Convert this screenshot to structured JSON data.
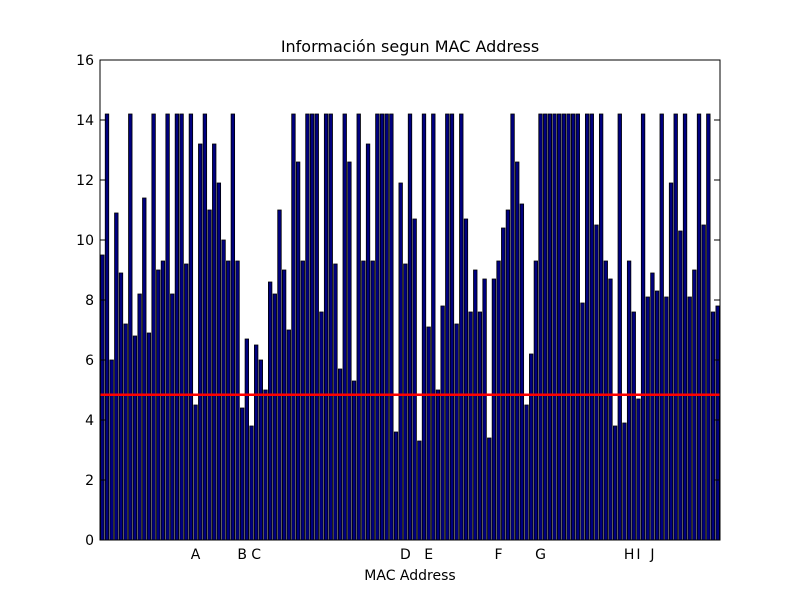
{
  "chart_data": {
    "type": "bar",
    "title": "Información segun MAC Address",
    "xlabel": "MAC Address",
    "ylabel": "",
    "ylim": [
      0,
      16
    ],
    "yticks": [
      0,
      2,
      4,
      6,
      8,
      10,
      12,
      14,
      16
    ],
    "grid": false,
    "legend": "none",
    "bar_color": "#00007f",
    "bar_edge_color": "#000000",
    "reference_line": {
      "value": 4.84,
      "color": "#ff0000"
    },
    "values": [
      9.5,
      14.2,
      6.0,
      10.9,
      8.9,
      7.2,
      14.2,
      6.8,
      8.2,
      11.4,
      6.9,
      14.2,
      9.0,
      9.3,
      14.2,
      8.2,
      14.2,
      14.2,
      9.2,
      14.2,
      4.5,
      13.2,
      14.2,
      11.0,
      13.2,
      11.9,
      10.0,
      9.3,
      14.2,
      9.3,
      4.4,
      6.7,
      3.8,
      6.5,
      6.0,
      5.0,
      8.6,
      8.2,
      11.0,
      9.0,
      7.0,
      14.2,
      12.6,
      9.3,
      14.2,
      14.2,
      14.2,
      7.6,
      14.2,
      14.2,
      9.2,
      5.7,
      14.2,
      12.6,
      5.3,
      14.2,
      9.3,
      13.2,
      9.3,
      14.2,
      14.2,
      14.2,
      14.2,
      3.6,
      11.9,
      9.2,
      14.2,
      10.7,
      3.3,
      14.2,
      7.1,
      14.2,
      5.0,
      7.8,
      14.2,
      14.2,
      7.2,
      14.2,
      10.7,
      7.6,
      9.0,
      7.6,
      8.7,
      3.4,
      8.7,
      9.3,
      10.4,
      11.0,
      14.2,
      12.6,
      11.2,
      4.5,
      6.2,
      9.3,
      14.2,
      14.2,
      14.2,
      14.2,
      14.2,
      14.2,
      14.2,
      14.2,
      14.2,
      7.9,
      14.2,
      14.2,
      10.5,
      14.2,
      9.3,
      8.7,
      3.8,
      14.2,
      3.9,
      9.3,
      7.6,
      4.7,
      14.2,
      8.1,
      8.9,
      8.3,
      14.2,
      8.1,
      11.9,
      14.2,
      10.3,
      14.2,
      8.1,
      9.0,
      14.2,
      10.5,
      14.2,
      7.6,
      7.8
    ],
    "x_tick_labels": [
      {
        "label": "A",
        "index": 20
      },
      {
        "label": "B",
        "index": 30
      },
      {
        "label": "C",
        "index": 33
      },
      {
        "label": "D",
        "index": 65
      },
      {
        "label": "E",
        "index": 70
      },
      {
        "label": "F",
        "index": 85
      },
      {
        "label": "G",
        "index": 94
      },
      {
        "label": "H",
        "index": 113
      },
      {
        "label": "I",
        "index": 115
      },
      {
        "label": "J",
        "index": 118
      }
    ]
  }
}
